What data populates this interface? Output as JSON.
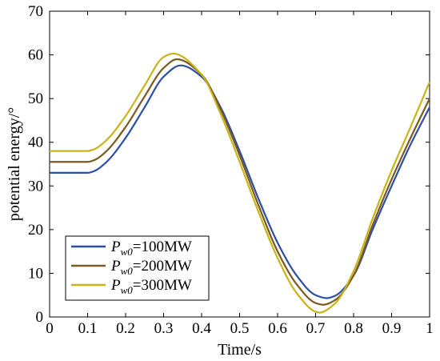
{
  "chart_data": {
    "type": "line",
    "title": "",
    "xlabel": "Time/s",
    "ylabel": "potential energy/°",
    "xlim": [
      0,
      1
    ],
    "ylim": [
      0,
      70
    ],
    "xticks": [
      "0",
      "0.1",
      "0.2",
      "0.3",
      "0.4",
      "0.5",
      "0.6",
      "0.7",
      "0.8",
      "0.9",
      "1"
    ],
    "yticks": [
      "0",
      "10",
      "20",
      "30",
      "40",
      "50",
      "60",
      "70"
    ],
    "grid": false,
    "legend": {
      "placement": "bottom-left",
      "entries": [
        {
          "sym": "P",
          "sub": "w0",
          "rest": "=100MW"
        },
        {
          "sym": "P",
          "sub": "w0",
          "rest": "=200MW"
        },
        {
          "sym": "P",
          "sub": "w0",
          "rest": "=300MW"
        }
      ]
    },
    "series": [
      {
        "color": "#2b4fa3",
        "x": [
          0,
          0.05,
          0.1,
          0.12,
          0.15,
          0.2,
          0.25,
          0.3,
          0.345,
          0.4,
          0.45,
          0.5,
          0.55,
          0.6,
          0.65,
          0.7,
          0.73,
          0.75,
          0.8,
          0.85,
          0.9,
          0.95,
          1.0
        ],
        "y": [
          33,
          33,
          33,
          33.5,
          35.5,
          41,
          48,
          55,
          57.6,
          55,
          48,
          38,
          27,
          17,
          9.5,
          5,
          4.3,
          4.8,
          9.5,
          20,
          30,
          39.5,
          48
        ]
      },
      {
        "color": "#7a5a22",
        "x": [
          0,
          0.05,
          0.1,
          0.12,
          0.15,
          0.2,
          0.25,
          0.3,
          0.335,
          0.4,
          0.45,
          0.5,
          0.55,
          0.6,
          0.65,
          0.7,
          0.72,
          0.75,
          0.8,
          0.85,
          0.9,
          0.95,
          1.0
        ],
        "y": [
          35.5,
          35.5,
          35.5,
          36,
          38,
          43.5,
          50.5,
          57,
          59,
          55.5,
          47.5,
          37,
          25.5,
          15,
          7.5,
          3.2,
          2.8,
          3.8,
          9.5,
          21,
          31.5,
          41,
          50
        ]
      },
      {
        "color": "#c9b418",
        "x": [
          0,
          0.05,
          0.1,
          0.12,
          0.15,
          0.2,
          0.25,
          0.3,
          0.325,
          0.4,
          0.45,
          0.5,
          0.55,
          0.6,
          0.65,
          0.7,
          0.71,
          0.75,
          0.8,
          0.85,
          0.9,
          0.95,
          1.0
        ],
        "y": [
          38,
          38,
          38,
          38.5,
          40.5,
          46,
          53,
          59.5,
          60.3,
          55.5,
          46.5,
          35.5,
          24,
          13.5,
          5.5,
          1.2,
          1.0,
          3,
          10.5,
          22.5,
          33.5,
          43.5,
          53.8
        ]
      }
    ]
  }
}
